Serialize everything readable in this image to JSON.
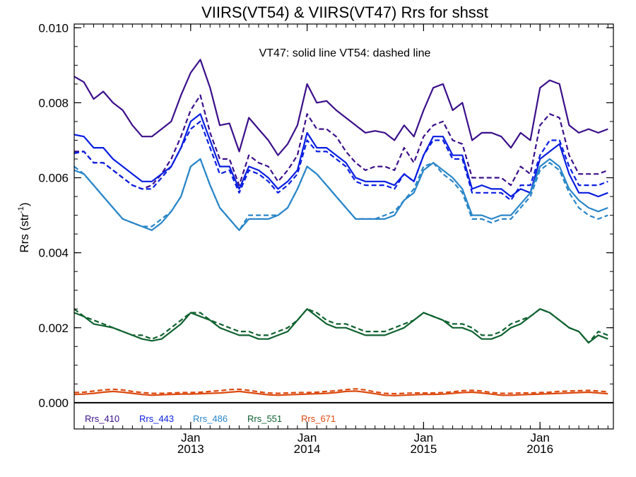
{
  "chart_data": {
    "type": "line",
    "title": "VIIRS(VT54) & VIIRS(VT47)  Rrs for shsst",
    "ylabel_main": "Rrs (str",
    "ylabel_sup": "-1",
    "ylabel_close": ")",
    "annotation": "VT47: solid line   VT54: dashed line",
    "ylim": [
      -0.0007,
      0.0101
    ],
    "xlim": [
      2012.0,
      2016.63
    ],
    "yticks": [
      0.0,
      0.002,
      0.004,
      0.006,
      0.008,
      0.01
    ],
    "ytick_labels": [
      "0.000",
      "0.002",
      "0.004",
      "0.006",
      "0.008",
      "0.010"
    ],
    "xticks": [
      {
        "pos": 2013.0,
        "month": "Jan",
        "year": "2013"
      },
      {
        "pos": 2014.0,
        "month": "Jan",
        "year": "2014"
      },
      {
        "pos": 2015.0,
        "month": "Jan",
        "year": "2015"
      },
      {
        "pos": 2016.0,
        "month": "Jan",
        "year": "2016"
      }
    ],
    "x": [
      2012.0,
      2012.083,
      2012.167,
      2012.25,
      2012.333,
      2012.417,
      2012.5,
      2012.583,
      2012.667,
      2012.75,
      2012.833,
      2012.917,
      2013.0,
      2013.083,
      2013.167,
      2013.25,
      2013.333,
      2013.417,
      2013.5,
      2013.583,
      2013.667,
      2013.75,
      2013.833,
      2013.917,
      2014.0,
      2014.083,
      2014.167,
      2014.25,
      2014.333,
      2014.417,
      2014.5,
      2014.583,
      2014.667,
      2014.75,
      2014.833,
      2014.917,
      2015.0,
      2015.083,
      2015.167,
      2015.25,
      2015.333,
      2015.417,
      2015.5,
      2015.583,
      2015.667,
      2015.75,
      2015.833,
      2015.917,
      2016.0,
      2016.083,
      2016.167,
      2016.25,
      2016.333,
      2016.417,
      2016.5,
      2016.583
    ],
    "series": [
      {
        "name": "Rrs_410",
        "color": "#3b0f8a",
        "style": "solid",
        "values": [
          0.0087,
          0.00855,
          0.0081,
          0.0083,
          0.008,
          0.0078,
          0.0074,
          0.0071,
          0.0071,
          0.0073,
          0.0075,
          0.0082,
          0.0088,
          0.00915,
          0.0084,
          0.0074,
          0.00745,
          0.0067,
          0.0076,
          0.0073,
          0.007,
          0.0066,
          0.0069,
          0.0074,
          0.0085,
          0.008,
          0.00805,
          0.0078,
          0.0076,
          0.0074,
          0.0072,
          0.00725,
          0.0072,
          0.007,
          0.0074,
          0.0071,
          0.0078,
          0.0084,
          0.0085,
          0.0078,
          0.008,
          0.007,
          0.0072,
          0.0072,
          0.0071,
          0.0068,
          0.0072,
          0.007,
          0.0084,
          0.0086,
          0.0085,
          0.0074,
          0.0072,
          0.0073,
          0.0072,
          0.0073
        ]
      },
      {
        "name": "Rrs_410",
        "color": "#3b0f8a",
        "style": "dashed",
        "values": [
          0.0067,
          0.0067,
          0.0064,
          0.0064,
          0.0062,
          0.006,
          0.0058,
          0.0057,
          0.0058,
          0.0061,
          0.0065,
          0.0071,
          0.0078,
          0.0082,
          0.0072,
          0.0065,
          0.0065,
          0.0058,
          0.0066,
          0.0064,
          0.0063,
          0.0059,
          0.0062,
          0.0066,
          0.0077,
          0.0073,
          0.0073,
          0.0071,
          0.0067,
          0.0064,
          0.0062,
          0.0063,
          0.0063,
          0.0062,
          0.0068,
          0.0064,
          0.0071,
          0.0074,
          0.0075,
          0.007,
          0.0069,
          0.006,
          0.006,
          0.006,
          0.006,
          0.0058,
          0.0063,
          0.0061,
          0.0074,
          0.0077,
          0.0076,
          0.0066,
          0.0061,
          0.0061,
          0.0061,
          0.0062
        ]
      },
      {
        "name": "Rrs_443",
        "color": "#0a1ee0",
        "style": "solid",
        "values": [
          0.00715,
          0.0071,
          0.0068,
          0.0068,
          0.0065,
          0.0063,
          0.0061,
          0.0059,
          0.0059,
          0.0061,
          0.0063,
          0.0068,
          0.0075,
          0.0077,
          0.007,
          0.0063,
          0.0063,
          0.0057,
          0.0063,
          0.0062,
          0.006,
          0.0057,
          0.0059,
          0.0062,
          0.0072,
          0.0068,
          0.0068,
          0.0066,
          0.0064,
          0.006,
          0.0059,
          0.0059,
          0.0059,
          0.0058,
          0.0061,
          0.0059,
          0.0066,
          0.0071,
          0.0071,
          0.0066,
          0.0066,
          0.0057,
          0.0058,
          0.0057,
          0.0057,
          0.0055,
          0.0057,
          0.0056,
          0.0065,
          0.0067,
          0.0069,
          0.0061,
          0.0056,
          0.0056,
          0.0055,
          0.0056
        ]
      },
      {
        "name": "Rrs_443",
        "color": "#0a1ee0",
        "style": "dashed",
        "values": [
          0.00665,
          0.0067,
          0.0064,
          0.0064,
          0.0062,
          0.006,
          0.0058,
          0.0057,
          0.0057,
          0.006,
          0.0063,
          0.0068,
          0.0073,
          0.0075,
          0.0068,
          0.0061,
          0.0062,
          0.0056,
          0.0062,
          0.0061,
          0.0059,
          0.0056,
          0.0058,
          0.0061,
          0.007,
          0.0067,
          0.0067,
          0.0065,
          0.0063,
          0.0059,
          0.0058,
          0.0058,
          0.0058,
          0.0057,
          0.0061,
          0.0059,
          0.0066,
          0.007,
          0.007,
          0.0065,
          0.0065,
          0.0056,
          0.0056,
          0.0056,
          0.0056,
          0.0054,
          0.0058,
          0.0058,
          0.0066,
          0.007,
          0.007,
          0.0063,
          0.0058,
          0.0058,
          0.0058,
          0.0059
        ]
      },
      {
        "name": "Rrs_486",
        "color": "#2a86c8",
        "style": "solid",
        "values": [
          0.0062,
          0.0061,
          0.0058,
          0.0055,
          0.0052,
          0.0049,
          0.0048,
          0.0047,
          0.0046,
          0.0048,
          0.0051,
          0.0055,
          0.0063,
          0.0065,
          0.0058,
          0.0052,
          0.0049,
          0.0046,
          0.0049,
          0.0049,
          0.0049,
          0.005,
          0.0052,
          0.0057,
          0.0063,
          0.0061,
          0.0058,
          0.0055,
          0.0052,
          0.0049,
          0.0049,
          0.0049,
          0.0049,
          0.005,
          0.0054,
          0.0056,
          0.0062,
          0.0064,
          0.0062,
          0.006,
          0.0057,
          0.005,
          0.005,
          0.0049,
          0.005,
          0.005,
          0.0053,
          0.0056,
          0.0063,
          0.0065,
          0.0063,
          0.0057,
          0.0054,
          0.0052,
          0.0051,
          0.0052
        ]
      },
      {
        "name": "Rrs_486",
        "color": "#2a86c8",
        "style": "dashed",
        "values": [
          0.0063,
          0.0061,
          0.0058,
          0.0055,
          0.0052,
          0.0049,
          0.0048,
          0.0047,
          0.0047,
          0.0049,
          0.0051,
          0.0055,
          0.0063,
          0.0065,
          0.0058,
          0.0052,
          0.0049,
          0.0046,
          0.005,
          0.005,
          0.005,
          0.005,
          0.0052,
          0.0057,
          0.0063,
          0.0061,
          0.0058,
          0.0055,
          0.0052,
          0.0049,
          0.0049,
          0.0049,
          0.005,
          0.0051,
          0.0054,
          0.0057,
          0.0063,
          0.0064,
          0.0061,
          0.0059,
          0.0056,
          0.0049,
          0.0049,
          0.0048,
          0.0049,
          0.0049,
          0.0052,
          0.0055,
          0.0062,
          0.0064,
          0.0062,
          0.0056,
          0.0052,
          0.005,
          0.0049,
          0.005
        ]
      },
      {
        "name": "Rrs_551",
        "color": "#106230",
        "style": "solid",
        "values": [
          0.0024,
          0.0023,
          0.0021,
          0.00205,
          0.002,
          0.0019,
          0.0018,
          0.0017,
          0.00165,
          0.0017,
          0.0019,
          0.0021,
          0.0024,
          0.0023,
          0.0022,
          0.002,
          0.0019,
          0.0018,
          0.0018,
          0.0017,
          0.0017,
          0.0018,
          0.0019,
          0.0022,
          0.0025,
          0.0023,
          0.0021,
          0.002,
          0.002,
          0.0019,
          0.0018,
          0.0018,
          0.0018,
          0.0019,
          0.002,
          0.0022,
          0.0024,
          0.0023,
          0.0022,
          0.002,
          0.002,
          0.0019,
          0.0017,
          0.0017,
          0.0018,
          0.002,
          0.0021,
          0.0023,
          0.0025,
          0.0024,
          0.0022,
          0.002,
          0.0019,
          0.0016,
          0.0018,
          0.0017
        ]
      },
      {
        "name": "Rrs_551",
        "color": "#106230",
        "style": "dashed",
        "values": [
          0.0025,
          0.0023,
          0.0022,
          0.0021,
          0.002,
          0.0019,
          0.0018,
          0.0018,
          0.0017,
          0.0018,
          0.002,
          0.0022,
          0.0024,
          0.0024,
          0.0022,
          0.0021,
          0.002,
          0.0019,
          0.0019,
          0.0018,
          0.0018,
          0.0019,
          0.002,
          0.0022,
          0.0025,
          0.0024,
          0.0022,
          0.0021,
          0.0021,
          0.002,
          0.0019,
          0.0019,
          0.0019,
          0.002,
          0.0021,
          0.0022,
          0.0024,
          0.0023,
          0.0022,
          0.0021,
          0.0021,
          0.002,
          0.0018,
          0.0018,
          0.0019,
          0.0021,
          0.0022,
          0.0023,
          0.0025,
          0.0024,
          0.0022,
          0.002,
          0.0019,
          0.0016,
          0.0019,
          0.0018
        ]
      },
      {
        "name": "Rrs_671",
        "color": "#dc4a10",
        "style": "solid",
        "values": [
          0.00022,
          0.00023,
          0.00025,
          0.00028,
          0.0003,
          0.00028,
          0.00025,
          0.00022,
          0.0002,
          0.00021,
          0.00022,
          0.00023,
          0.00023,
          0.00024,
          0.00025,
          0.00026,
          0.00028,
          0.0003,
          0.00027,
          0.00024,
          0.00021,
          0.0002,
          0.00021,
          0.00022,
          0.00023,
          0.00024,
          0.00025,
          0.00027,
          0.0003,
          0.00031,
          0.00028,
          0.00024,
          0.0002,
          0.00019,
          0.0002,
          0.00021,
          0.00022,
          0.00022,
          0.00023,
          0.00025,
          0.00027,
          0.00028,
          0.00026,
          0.00023,
          0.0002,
          0.0002,
          0.00021,
          0.00022,
          0.00023,
          0.00024,
          0.00025,
          0.00026,
          0.00027,
          0.00028,
          0.00026,
          0.00024
        ]
      },
      {
        "name": "Rrs_671",
        "color": "#dc4a10",
        "style": "dashed",
        "values": [
          0.00027,
          0.00028,
          0.00031,
          0.00034,
          0.00036,
          0.00034,
          0.0003,
          0.00027,
          0.00025,
          0.00025,
          0.00026,
          0.00027,
          0.00027,
          0.00028,
          0.0003,
          0.00032,
          0.00035,
          0.00036,
          0.00033,
          0.00029,
          0.00026,
          0.00025,
          0.00026,
          0.00027,
          0.00027,
          0.00028,
          0.0003,
          0.00032,
          0.00035,
          0.00037,
          0.00034,
          0.00029,
          0.00025,
          0.00024,
          0.00025,
          0.00026,
          0.00026,
          0.00026,
          0.00027,
          0.00029,
          0.00032,
          0.00033,
          0.00031,
          0.00027,
          0.00025,
          0.00025,
          0.00026,
          0.00026,
          0.00027,
          0.00028,
          0.0003,
          0.00031,
          0.00032,
          0.00033,
          0.00031,
          0.00029
        ]
      }
    ],
    "legend": [
      {
        "label": "Rrs_410",
        "color": "#3b0f8a"
      },
      {
        "label": "Rrs_443",
        "color": "#0a1ee0"
      },
      {
        "label": "Rrs_486",
        "color": "#2a86c8"
      },
      {
        "label": "Rrs_551",
        "color": "#106230"
      },
      {
        "label": "Rrs_671",
        "color": "#dc4a10"
      }
    ],
    "legend_position": "bottom-left",
    "grid": false,
    "zero_line": true
  }
}
